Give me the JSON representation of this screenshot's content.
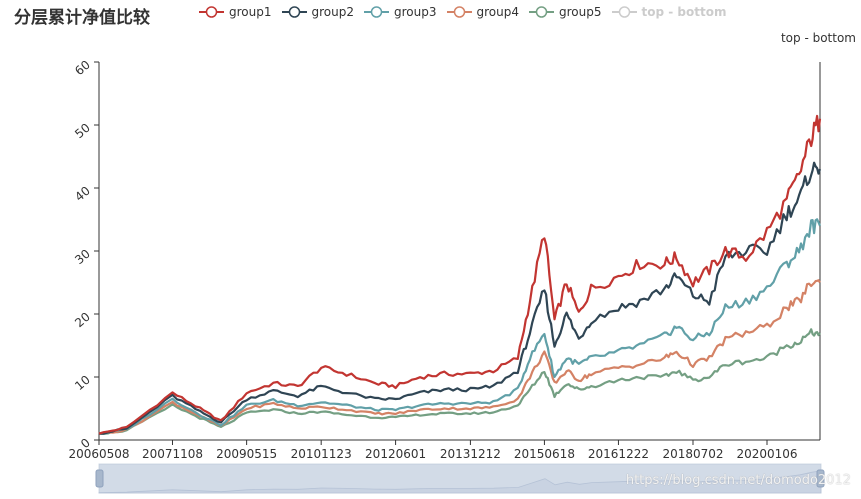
{
  "chart_data": {
    "type": "line",
    "title": "分层累计净值比较",
    "x_ticks": [
      "20060508",
      "20071108",
      "20090515",
      "20101123",
      "20120601",
      "20131212",
      "20150618",
      "20161222",
      "20180702",
      "20200106"
    ],
    "x_points": [
      "20060508",
      "20061201",
      "20071108",
      "20080601",
      "20081104",
      "20090515",
      "20091201",
      "20100601",
      "20101123",
      "20110601",
      "20120101",
      "20120601",
      "20121201",
      "20130601",
      "20131212",
      "20140601",
      "20141201",
      "20150301",
      "20150618",
      "20150901",
      "20151201",
      "20160301",
      "20160601",
      "20161222",
      "20170601",
      "20171201",
      "20180301",
      "20180702",
      "20181101",
      "20190301",
      "20190801",
      "20200106",
      "20200601",
      "20200901",
      "20201201",
      "20210205"
    ],
    "ylim": [
      0,
      60
    ],
    "y_ticks": [
      0,
      10,
      20,
      30,
      40,
      50,
      60
    ],
    "right_axis_label": "top - bottom",
    "series": [
      {
        "name": "group1",
        "color": "#c23531",
        "values": [
          1,
          2,
          7.5,
          5,
          3,
          7.5,
          9,
          8.5,
          11.5,
          10.5,
          9,
          8.5,
          10,
          10.5,
          10.5,
          11,
          13,
          22,
          33,
          19,
          25,
          20,
          24,
          26,
          28,
          28,
          29,
          25,
          27,
          30,
          29,
          33,
          38,
          42,
          48,
          51
        ]
      },
      {
        "name": "group2",
        "color": "#2f4554",
        "values": [
          1,
          1.8,
          7,
          4.5,
          2.8,
          6.5,
          7.8,
          7,
          8.5,
          7.5,
          6.5,
          6.5,
          7.5,
          8,
          8,
          8.5,
          11,
          17,
          24,
          15,
          20,
          16,
          19,
          21,
          22,
          24,
          26,
          23,
          22,
          29,
          30,
          30,
          36,
          38,
          43,
          43
        ]
      },
      {
        "name": "group3",
        "color": "#61a0a8",
        "values": [
          1,
          1.7,
          6.5,
          4,
          2.4,
          5.5,
          6.3,
          5.5,
          6,
          5.5,
          4.8,
          4.8,
          5.5,
          5.8,
          5.8,
          6,
          8,
          13,
          17,
          10,
          13,
          12,
          13,
          14,
          15,
          16.5,
          18,
          16,
          17,
          21,
          22,
          24,
          28,
          30,
          34,
          34
        ]
      },
      {
        "name": "group4",
        "color": "#d48265",
        "values": [
          1,
          1.6,
          6,
          3.8,
          2.2,
          5,
          5.8,
          5,
          5.3,
          4.8,
          4.2,
          4.2,
          4.8,
          5,
          5,
          5.2,
          6.5,
          10,
          14,
          9,
          11,
          9.5,
          10.5,
          11.5,
          12,
          13,
          14,
          12,
          13,
          16,
          17,
          18,
          21,
          22,
          25,
          25
        ]
      },
      {
        "name": "group5",
        "color": "#749f83",
        "values": [
          1,
          1.5,
          5.5,
          3.5,
          2,
          4.3,
          4.8,
          4.2,
          4.5,
          4,
          3.6,
          3.6,
          4,
          4.2,
          4.2,
          4.4,
          5.5,
          8,
          11,
          7,
          9,
          8,
          8.5,
          9.5,
          10,
          10,
          11,
          9.5,
          10,
          12,
          12.5,
          13,
          15,
          15.5,
          17,
          17
        ]
      }
    ],
    "legend": [
      {
        "name": "group1",
        "color": "#c23531",
        "active": true
      },
      {
        "name": "group2",
        "color": "#2f4554",
        "active": true
      },
      {
        "name": "group3",
        "color": "#61a0a8",
        "active": true
      },
      {
        "name": "group4",
        "color": "#d48265",
        "active": true
      },
      {
        "name": "group5",
        "color": "#749f83",
        "active": true
      },
      {
        "name": "top - bottom",
        "color": "#cccccc",
        "active": false
      }
    ]
  },
  "watermark": "https://blog.csdn.net/domodo2012"
}
